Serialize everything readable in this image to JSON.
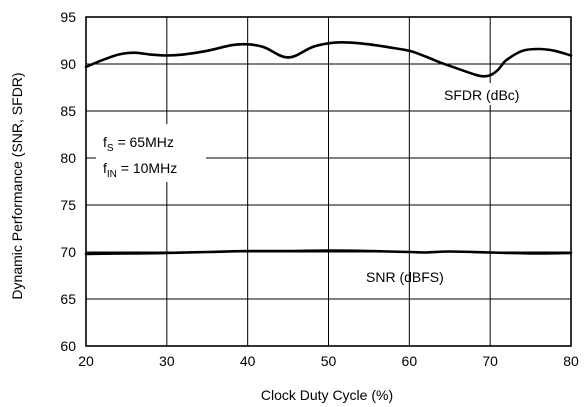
{
  "chart_data": {
    "type": "line",
    "xlabel": "Clock Duty Cycle (%)",
    "ylabel": "Dynamic Performance (SNR, SFDR)",
    "xlim": [
      20,
      80
    ],
    "ylim": [
      60,
      95
    ],
    "xticks": [
      20,
      30,
      40,
      50,
      60,
      70,
      80
    ],
    "yticks": [
      60,
      65,
      70,
      75,
      80,
      85,
      90,
      95
    ],
    "grid": true,
    "series": [
      {
        "name": "SFDR (dBc)",
        "x": [
          20,
          22,
          24,
          26,
          28,
          30,
          32,
          35,
          38,
          40,
          42,
          44,
          45,
          46,
          48,
          50,
          52,
          55,
          58,
          60,
          62,
          64,
          66,
          68,
          69,
          70,
          71,
          72,
          74,
          76,
          78,
          80
        ],
        "y": [
          89.7,
          90.4,
          91.0,
          91.2,
          91.0,
          90.9,
          91.0,
          91.4,
          92.0,
          92.1,
          91.8,
          90.9,
          90.7,
          90.9,
          91.8,
          92.2,
          92.3,
          92.1,
          91.7,
          91.4,
          90.8,
          90.1,
          89.5,
          88.9,
          88.7,
          88.8,
          89.4,
          90.4,
          91.4,
          91.6,
          91.4,
          90.9
        ],
        "label": "SFDR (dBc)"
      },
      {
        "name": "SNR (dBFS)",
        "x": [
          20,
          25,
          30,
          35,
          40,
          45,
          50,
          55,
          60,
          62,
          65,
          70,
          75,
          80
        ],
        "y": [
          69.8,
          69.85,
          69.9,
          70.0,
          70.1,
          70.1,
          70.15,
          70.1,
          70.0,
          69.95,
          70.05,
          69.95,
          69.85,
          69.9
        ],
        "label": "SNR (dBFS)"
      }
    ],
    "annotations": {
      "fs_main": "f",
      "fs_sub": "S",
      "fs_value": " = 65MHz",
      "fin_main": "f",
      "fin_sub": "IN",
      "fin_value": " = 10MHz"
    }
  }
}
